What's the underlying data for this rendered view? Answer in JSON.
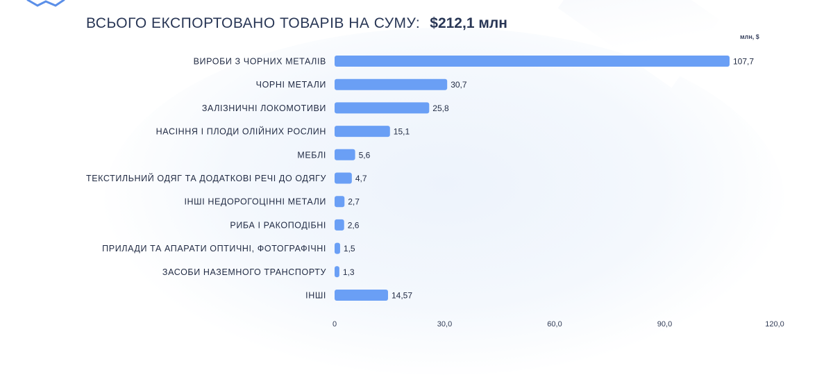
{
  "header": {
    "subtitle_label": "ВСЬОГО ЕКСПОРТОВАНО ТОВАРІВ НА СУМУ:",
    "subtitle_value": "$212,1 млн"
  },
  "colors": {
    "bar": "#6a9ff5",
    "text": "#283655"
  },
  "chart_data": {
    "type": "bar",
    "orientation": "horizontal",
    "unit": "млн, $",
    "categories": [
      "ВИРОБИ З ЧОРНИХ МЕТАЛІВ",
      "ЧОРНІ МЕТАЛИ",
      "ЗАЛІЗНИЧНІ ЛОКОМОТИВИ",
      "НАСІННЯ І ПЛОДИ ОЛІЙНИХ РОСЛИН",
      "МЕБЛІ",
      "ТЕКСТИЛЬНИЙ ОДЯГ ТА ДОДАТКОВІ РЕЧІ ДО ОДЯГУ",
      "ІНШІ НЕДОРОГОЦІННІ МЕТАЛИ",
      "РИБА І РАКОПОДІБНІ",
      "ПРИЛАДИ ТА АПАРАТИ ОПТИЧНІ, ФОТОГРАФІЧНІ",
      "ЗАСОБИ НАЗЕМНОГО ТРАНСПОРТУ",
      "ІНШІ"
    ],
    "values": [
      107.7,
      30.7,
      25.8,
      15.1,
      5.6,
      4.7,
      2.7,
      2.6,
      1.5,
      1.3,
      14.57
    ],
    "value_labels": [
      "107,7",
      "30,7",
      "25,8",
      "15,1",
      "5,6",
      "4,7",
      "2,7",
      "2,6",
      "1,5",
      "1,3",
      "14,57"
    ],
    "xlim": [
      0,
      120
    ],
    "xticks": [
      0,
      30,
      60,
      90,
      120
    ],
    "xtick_labels": [
      "0",
      "30,0",
      "60,0",
      "90,0",
      "120,0"
    ],
    "grid": false,
    "legend": "none"
  }
}
